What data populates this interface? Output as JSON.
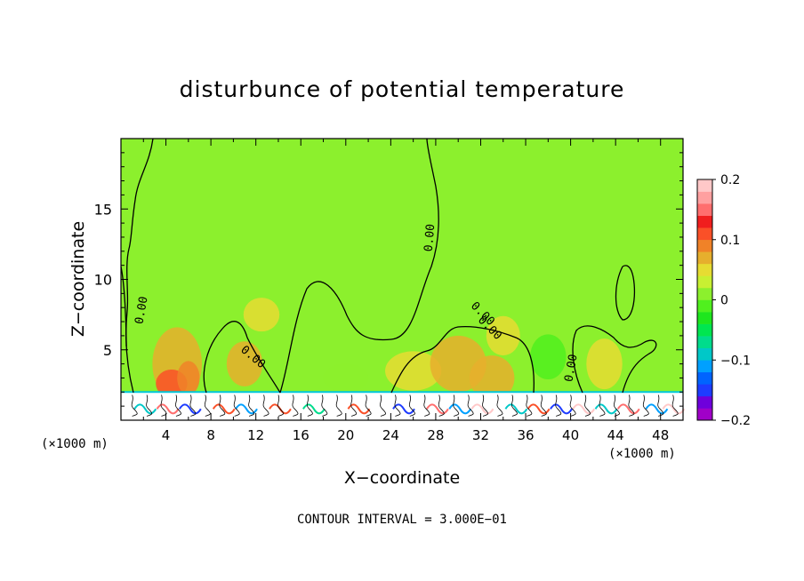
{
  "chart_data": {
    "type": "heatmap",
    "title": "disturbunce of potential temperature",
    "xlabel": "X−coordinate",
    "ylabel": "Z−coordinate",
    "x_unit": "(×1000 m)",
    "x_unit_right": "(×1000 m)",
    "xlim": [
      0,
      50
    ],
    "ylim": [
      0,
      20
    ],
    "xticks": [
      4,
      8,
      12,
      16,
      20,
      24,
      28,
      32,
      36,
      40,
      44,
      48
    ],
    "yticks": [
      5,
      10,
      15
    ],
    "colorbar": {
      "range": [
        -0.2,
        0.2
      ],
      "ticks": [
        0.2,
        0.1,
        0,
        -0.1,
        -0.2
      ],
      "tick_labels": [
        "0.2",
        "0.1",
        "0",
        "−0.1",
        "−0.2"
      ],
      "colors": [
        "#a000c8",
        "#6e00dc",
        "#1e3cff",
        "#0064ff",
        "#00a0ff",
        "#00c8c8",
        "#00dc8c",
        "#00e650",
        "#1ee61e",
        "#50f01e",
        "#8cf02d",
        "#c8f032",
        "#e6dc32",
        "#e6af2d",
        "#f08228",
        "#fa5028",
        "#f01e1e",
        "#ff6e6e",
        "#ffa0a0",
        "#ffc8c8"
      ]
    },
    "background_value": 0.02,
    "contour_level_label": "0.00",
    "contour_labels": [
      "0.00",
      "0.00",
      "0.00",
      "0.00",
      "0.00",
      "0.00"
    ],
    "footer": "CONTOUR INTERVAL = 3.000E−01"
  }
}
